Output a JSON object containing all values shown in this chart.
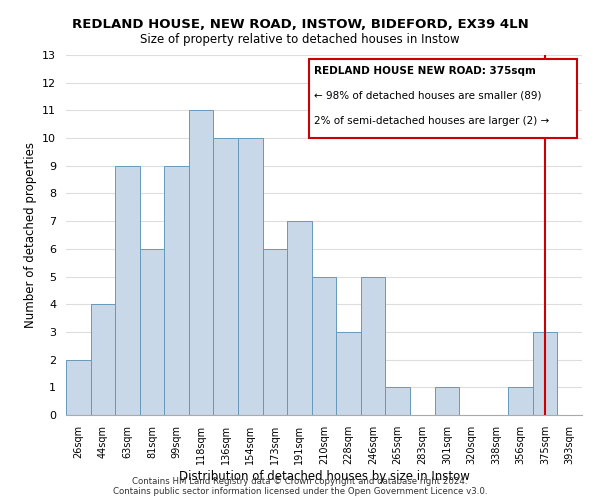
{
  "title": "REDLAND HOUSE, NEW ROAD, INSTOW, BIDEFORD, EX39 4LN",
  "subtitle": "Size of property relative to detached houses in Instow",
  "xlabel": "Distribution of detached houses by size in Instow",
  "ylabel": "Number of detached properties",
  "bar_labels": [
    "26sqm",
    "44sqm",
    "63sqm",
    "81sqm",
    "99sqm",
    "118sqm",
    "136sqm",
    "154sqm",
    "173sqm",
    "191sqm",
    "210sqm",
    "228sqm",
    "246sqm",
    "265sqm",
    "283sqm",
    "301sqm",
    "320sqm",
    "338sqm",
    "356sqm",
    "375sqm",
    "393sqm"
  ],
  "bar_values": [
    2,
    4,
    9,
    6,
    9,
    11,
    10,
    10,
    6,
    7,
    5,
    3,
    5,
    1,
    0,
    1,
    0,
    0,
    1,
    3,
    0
  ],
  "bar_color": "#c8d8e8",
  "bar_edge_color": "#6699bb",
  "highlight_index": 19,
  "highlight_line_color": "#cc0000",
  "ylim": [
    0,
    13
  ],
  "yticks": [
    0,
    1,
    2,
    3,
    4,
    5,
    6,
    7,
    8,
    9,
    10,
    11,
    12,
    13
  ],
  "legend_title": "REDLAND HOUSE NEW ROAD: 375sqm",
  "legend_line1": "← 98% of detached houses are smaller (89)",
  "legend_line2": "2% of semi-detached houses are larger (2) →",
  "legend_box_color": "#ffffff",
  "legend_box_edge_color": "#cc0000",
  "footer_line1": "Contains HM Land Registry data © Crown copyright and database right 2024.",
  "footer_line2": "Contains public sector information licensed under the Open Government Licence v3.0.",
  "grid_color": "#dddddd",
  "background_color": "#ffffff"
}
